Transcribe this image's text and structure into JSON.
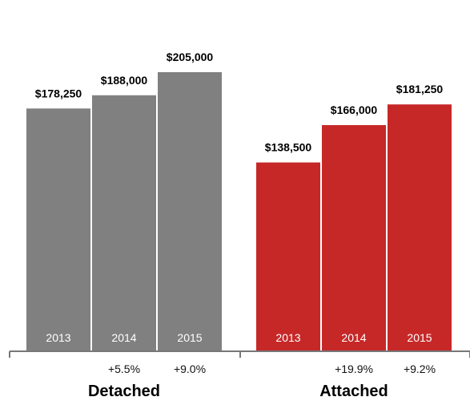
{
  "chart_data": {
    "type": "bar",
    "groups": [
      {
        "name": "Detached",
        "color": "#808080",
        "years": [
          "2013",
          "2014",
          "2015"
        ],
        "values": [
          178250,
          188000,
          205000
        ],
        "value_labels": [
          "$178,250",
          "$188,000",
          "$205,000"
        ],
        "changes": [
          "",
          "+5.5%",
          "+9.0%"
        ]
      },
      {
        "name": "Attached",
        "color": "#c62828",
        "years": [
          "2013",
          "2014",
          "2015"
        ],
        "values": [
          138500,
          166000,
          181250
        ],
        "value_labels": [
          "$138,500",
          "$166,000",
          "$181,250"
        ],
        "changes": [
          "",
          "+19.9%",
          "+9.2%"
        ]
      }
    ],
    "ylim": [
      0,
      250000
    ],
    "grid": false,
    "legend": "none"
  }
}
